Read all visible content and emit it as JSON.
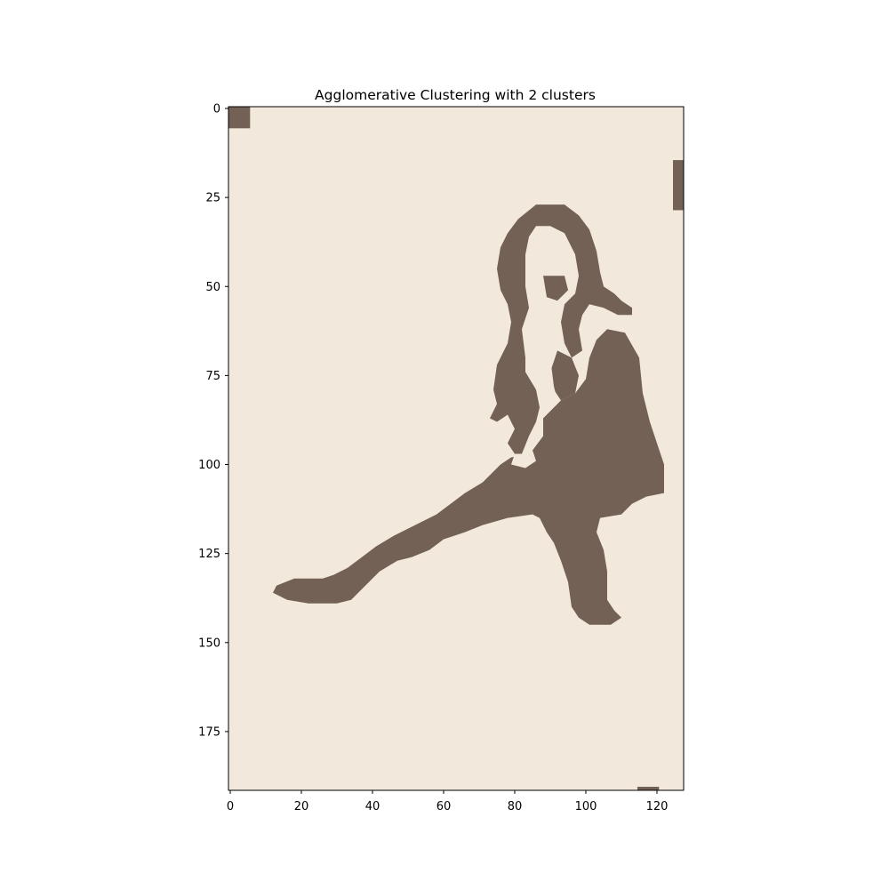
{
  "chart_data": {
    "type": "heatmap",
    "title": "Agglomerative Clustering with 2 clusters",
    "xlabel": "",
    "ylabel": "",
    "image_size": {
      "columns": 128,
      "rows": 192
    },
    "xlim": [
      -0.5,
      127.5
    ],
    "ylim": [
      191.5,
      -0.5
    ],
    "xticks": [
      0,
      20,
      40,
      60,
      80,
      100,
      120
    ],
    "yticks": [
      0,
      25,
      50,
      75,
      100,
      125,
      150,
      175
    ],
    "grid": false,
    "legend": "none",
    "clusters": [
      {
        "label": 0,
        "color": "#f2e9dc"
      },
      {
        "label": 1,
        "color": "#726154"
      }
    ],
    "cluster_1_regions": [
      {
        "rows": [
          0,
          5
        ],
        "cols": [
          0,
          5
        ]
      },
      {
        "rows": [
          15,
          28
        ],
        "cols": [
          125,
          127
        ]
      },
      {
        "rows": [
          191,
          191
        ],
        "cols": [
          115,
          120
        ]
      },
      {
        "rows_from": 27,
        "spans": [
          [
            87,
            93
          ],
          [
            85,
            94
          ],
          [
            82,
            96
          ],
          [
            81,
            98
          ],
          [
            80,
            99
          ],
          [
            79,
            83
          ],
          [
            93,
            100
          ],
          [
            78,
            82
          ],
          [
            94,
            101
          ],
          [
            78,
            81
          ],
          [
            95,
            101
          ],
          [
            77,
            80
          ],
          [
            95,
            102
          ],
          [
            76,
            79
          ],
          [
            95,
            102
          ],
          [
            76,
            80
          ],
          [
            96,
            102
          ],
          [
            76,
            81
          ],
          [
            96,
            103
          ],
          [
            75,
            81
          ],
          [
            96,
            103
          ],
          [
            75,
            82
          ],
          [
            97,
            104
          ],
          [
            75,
            82
          ],
          [
            97,
            104
          ],
          [
            75,
            82
          ],
          [
            97,
            104
          ],
          [
            75,
            82
          ],
          [
            97,
            104
          ],
          [
            75,
            82
          ],
          [
            97,
            104
          ],
          [
            75,
            82
          ],
          [
            89,
            94
          ],
          [
            97,
            104
          ],
          [
            76,
            82
          ],
          [
            88,
            94
          ],
          [
            97,
            104
          ],
          [
            76,
            82
          ],
          [
            88,
            94
          ],
          [
            97,
            104
          ],
          [
            76,
            82
          ],
          [
            88,
            94
          ],
          [
            97,
            104
          ],
          [
            76,
            82
          ],
          [
            88,
            94
          ],
          [
            98,
            104
          ],
          [
            76,
            82
          ],
          [
            88,
            94
          ],
          [
            98,
            104
          ],
          [
            76,
            82
          ],
          [
            88,
            94
          ],
          [
            98,
            105
          ],
          [
            76,
            82
          ],
          [
            88,
            94
          ],
          [
            98,
            106
          ],
          [
            76,
            82
          ],
          [
            88,
            94
          ],
          [
            98,
            107
          ],
          [
            76,
            82
          ],
          [
            88,
            94
          ],
          [
            98,
            108
          ],
          [
            76,
            82
          ],
          [
            88,
            94
          ],
          [
            98,
            109
          ],
          [
            77,
            82
          ],
          [
            87,
            94
          ],
          [
            98,
            110
          ],
          [
            77,
            82
          ],
          [
            87,
            94
          ],
          [
            98,
            110
          ],
          [
            77,
            82
          ],
          [
            86,
            94
          ],
          [
            98,
            110
          ],
          [
            77,
            82
          ],
          [
            86,
            94
          ],
          [
            98,
            110
          ],
          [
            77,
            82
          ],
          [
            86,
            94
          ],
          [
            98,
            110
          ],
          [
            77,
            82
          ],
          [
            86,
            94
          ],
          [
            98,
            110
          ],
          [
            78,
            82
          ],
          [
            86,
            94
          ],
          [
            98,
            110
          ],
          [
            78,
            82
          ],
          [
            86,
            94
          ],
          [
            98,
            110
          ],
          [
            78,
            82
          ],
          [
            86,
            94
          ],
          [
            98,
            110
          ],
          [
            78,
            82
          ],
          [
            86,
            94
          ],
          [
            98,
            110
          ],
          [
            78,
            82
          ],
          [
            86,
            94
          ],
          [
            98,
            110
          ],
          [
            78,
            82
          ],
          [
            86,
            94
          ],
          [
            98,
            110
          ],
          [
            78,
            82
          ],
          [
            86,
            94
          ],
          [
            98,
            110
          ],
          [
            78,
            82
          ],
          [
            86,
            94
          ],
          [
            98,
            110
          ],
          [
            78,
            82
          ],
          [
            86,
            94
          ],
          [
            98,
            110
          ],
          [
            78,
            82
          ],
          [
            86,
            94
          ],
          [
            98,
            110
          ],
          [
            78,
            82
          ],
          [
            86,
            94
          ],
          [
            98,
            110
          ],
          [
            78,
            82
          ],
          [
            86,
            94
          ],
          [
            98,
            110
          ],
          [
            78,
            82
          ],
          [
            86,
            94
          ],
          [
            98,
            110
          ],
          [
            78,
            82
          ],
          [
            86,
            94
          ],
          [
            98,
            110
          ],
          [
            78,
            82
          ],
          [
            86,
            94
          ],
          [
            98,
            110
          ],
          [
            78,
            82
          ],
          [
            86,
            94
          ],
          [
            98,
            110
          ]
        ]
      }
    ]
  }
}
